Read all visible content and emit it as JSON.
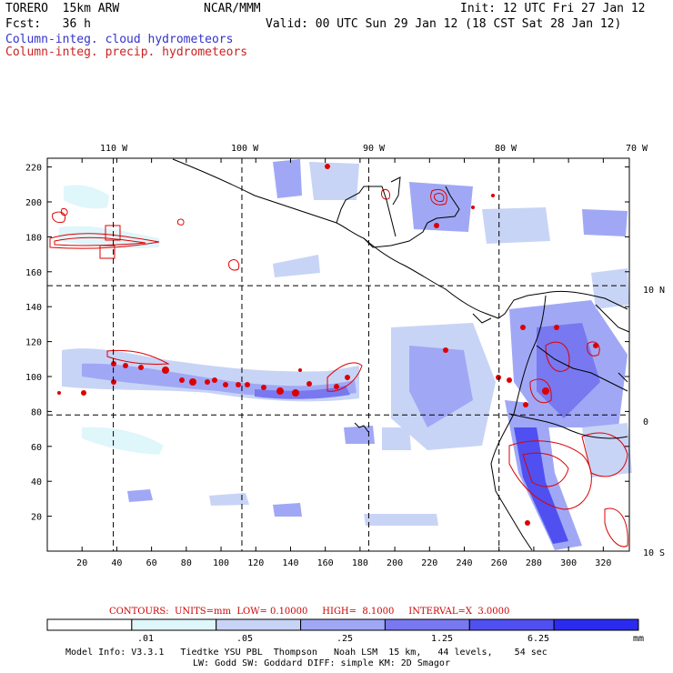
{
  "header": {
    "model_name": "TORERO  15km ARW",
    "org": "NCAR/MMM",
    "init": "Init: 12 UTC Fri 27 Jan 12",
    "fcst": "Fcst:   36 h",
    "valid": "Valid: 00 UTC Sun 29 Jan 12 (18 CST Sat 28 Jan 12)"
  },
  "legend": {
    "cloud": "Column-integ. cloud hydrometeors",
    "precip": "Column-integ. precip. hydrometeors",
    "cloud_color": "#3333cc",
    "precip_color": "#cc2222"
  },
  "map": {
    "longitude_labels": [
      "110 W",
      "100 W",
      "90 W",
      "80 W",
      "70 W"
    ],
    "latitude_labels": [
      "10 N",
      "0",
      "10 S"
    ],
    "y_ticks": [
      "220",
      "200",
      "180",
      "160",
      "140",
      "120",
      "100",
      "80",
      "60",
      "40",
      "20"
    ],
    "x_ticks": [
      "20",
      "40",
      "60",
      "80",
      "100",
      "120",
      "140",
      "160",
      "180",
      "200",
      "220",
      "240",
      "260",
      "280",
      "300",
      "320"
    ],
    "grid_x_values": [
      38,
      112,
      185,
      260
    ],
    "grid_y_values": [
      152,
      78
    ],
    "grid_x_min": 0,
    "grid_x_max": 335,
    "grid_y_min": 0,
    "grid_y_max": 225
  },
  "contours_info": "CONTOURS:  UNITS=mm  LOW= 0.10000     HIGH=  8.1000     INTERVAL=X  3.0000",
  "colorbar": {
    "labels": [
      ".01",
      ".05",
      ".25",
      "1.25",
      "6.25",
      "mm"
    ],
    "colors": [
      "#ffffff",
      "#dff6fb",
      "#c8d4f6",
      "#a0a8f5",
      "#7878f0",
      "#5050f0",
      "#2b2bf0"
    ]
  },
  "model_info": {
    "line1": "Model Info: V3.3.1   Tiedtke YSU PBL  Thompson   Noah LSM  15 km,   44 levels,    54 sec",
    "line2": "LW: Godd SW: Goddard DIFF: simple KM: 2D Smagor"
  }
}
